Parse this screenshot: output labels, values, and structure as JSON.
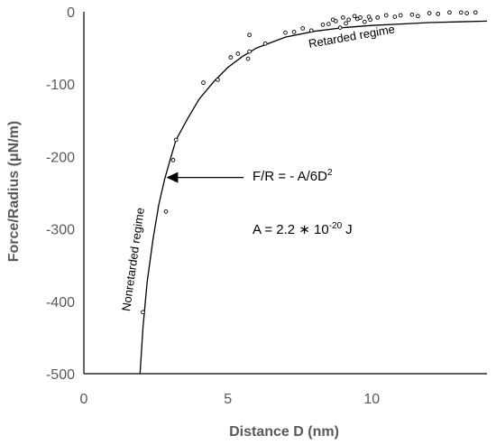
{
  "chart_data": {
    "type": "scatter",
    "xlabel": "Distance D (nm)",
    "ylabel": "Force/Radius (μN/m)",
    "xlim": [
      0,
      14
    ],
    "ylim": [
      -500,
      0
    ],
    "x_ticks": [
      0,
      5,
      10
    ],
    "y_ticks": [
      0,
      -100,
      -200,
      -300,
      -400,
      -500
    ],
    "grid": false,
    "legend": "none",
    "series": [
      {
        "kind": "points",
        "marker": "open-circle",
        "points": [
          [
            2.05,
            -415
          ],
          [
            2.85,
            -276
          ],
          [
            3.1,
            -205
          ],
          [
            3.2,
            -177
          ],
          [
            4.15,
            -98
          ],
          [
            4.65,
            -94
          ],
          [
            5.1,
            -63
          ],
          [
            5.35,
            -58
          ],
          [
            5.7,
            -65
          ],
          [
            5.75,
            -55
          ],
          [
            5.75,
            -32
          ],
          [
            6.3,
            -44
          ],
          [
            7.0,
            -29
          ],
          [
            7.3,
            -28
          ],
          [
            7.6,
            -23
          ],
          [
            7.9,
            -26
          ],
          [
            8.3,
            -18
          ],
          [
            8.5,
            -17
          ],
          [
            8.65,
            -11
          ],
          [
            8.75,
            -13
          ],
          [
            8.9,
            -22
          ],
          [
            9.0,
            -8
          ],
          [
            9.1,
            -16
          ],
          [
            9.2,
            -11
          ],
          [
            9.4,
            -6
          ],
          [
            9.5,
            -10
          ],
          [
            9.6,
            -8
          ],
          [
            9.75,
            -14
          ],
          [
            9.9,
            -7
          ],
          [
            9.95,
            -11
          ],
          [
            10.2,
            -8
          ],
          [
            10.5,
            -5
          ],
          [
            10.8,
            -7
          ],
          [
            11.0,
            -5
          ],
          [
            11.4,
            -4
          ],
          [
            11.6,
            -6
          ],
          [
            12.0,
            -2
          ],
          [
            12.3,
            -3
          ],
          [
            12.7,
            -1
          ],
          [
            13.1,
            -1
          ],
          [
            13.3,
            -2
          ],
          [
            13.6,
            -1
          ]
        ]
      },
      {
        "kind": "curve",
        "color": "#000000",
        "points": [
          [
            1.95,
            -500
          ],
          [
            2.05,
            -437
          ],
          [
            2.2,
            -373
          ],
          [
            2.4,
            -315
          ],
          [
            2.6,
            -267
          ],
          [
            2.8,
            -232
          ],
          [
            3.0,
            -204
          ],
          [
            3.2,
            -177
          ],
          [
            3.6,
            -148
          ],
          [
            4.0,
            -121
          ],
          [
            4.5,
            -97
          ],
          [
            5.0,
            -77
          ],
          [
            5.5,
            -62
          ],
          [
            6.0,
            -50
          ],
          [
            7.0,
            -35
          ],
          [
            8.0,
            -27
          ],
          [
            9.0,
            -22
          ],
          [
            10.0,
            -19
          ],
          [
            11.0,
            -17
          ],
          [
            12.0,
            -15
          ],
          [
            13.0,
            -14
          ],
          [
            14.0,
            -13
          ]
        ]
      }
    ],
    "annotations": {
      "equation": "F/R = - A/6D",
      "equation_exponent": "2",
      "constant_prefix": "A = 2.2 ∗ 10",
      "constant_exponent": "-20",
      "constant_unit": "J",
      "retarded_label": "Retarded regime",
      "nonretarded_label": "Nonretarded regime",
      "arrow_target": [
        2.8,
        -229
      ]
    }
  }
}
